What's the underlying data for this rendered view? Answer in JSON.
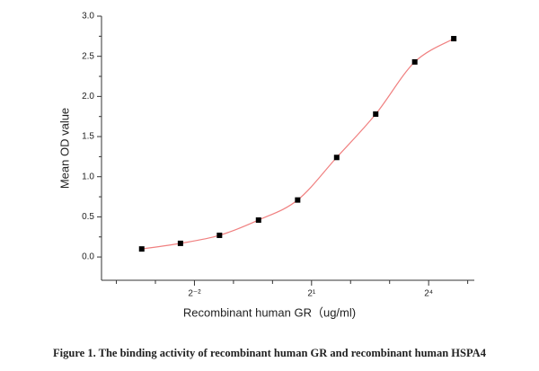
{
  "chart_data": {
    "type": "scatter",
    "xlabel": "Recombinant human GR（ug/ml)",
    "ylabel": "Mean OD value",
    "caption": "Figure 1. The binding activity of recombinant human GR and recombinant human HSPA4",
    "xscale": "log",
    "xbase": 2,
    "xlim": [
      0.048,
      36
    ],
    "xticks": [
      {
        "value": 0.25,
        "label": "2⁻²"
      },
      {
        "value": 2,
        "label": "2¹"
      },
      {
        "value": 16,
        "label": "2⁴"
      }
    ],
    "x_minor_ticks": [
      0.0625,
      0.125,
      0.5,
      1,
      4,
      8,
      32
    ],
    "ylim": [
      -0.29,
      3.0
    ],
    "yticks": [
      {
        "value": 0,
        "label": "0.0"
      },
      0.5,
      {
        "value": 1,
        "label": "1.0"
      },
      1.5,
      {
        "value": 2,
        "label": "2.0"
      },
      2.5,
      {
        "value": 3,
        "label": "3.0"
      }
    ],
    "y_minor_ticks": [
      0.25,
      0.75,
      1.25,
      1.75,
      2.25,
      2.75
    ],
    "fit_curve": true,
    "series": [
      {
        "color": "#000000",
        "curve_color": "#f08080",
        "x": [
          0.098,
          0.195,
          0.39,
          0.78,
          1.5625,
          3.125,
          6.25,
          12.5,
          25
        ],
        "values": [
          0.1,
          0.17,
          0.27,
          0.46,
          0.71,
          1.24,
          1.78,
          2.43,
          2.72
        ]
      }
    ]
  }
}
